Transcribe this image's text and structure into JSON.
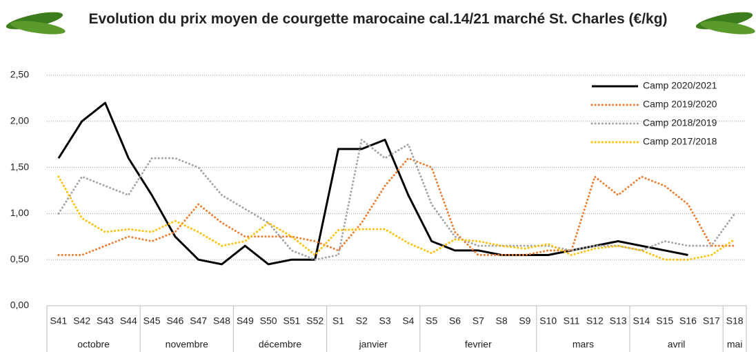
{
  "chart_data": {
    "type": "line",
    "title": "Evolution du prix moyen de courgette marocaine cal.14/21 marché St. Charles (€/kg)",
    "categories": [
      "S41",
      "S42",
      "S43",
      "S44",
      "S45",
      "S46",
      "S47",
      "S48",
      "S49",
      "S50",
      "S51",
      "S52",
      "S1",
      "S2",
      "S3",
      "S4",
      "S5",
      "S6",
      "S7",
      "S8",
      "S9",
      "S10",
      "S11",
      "S12",
      "S13",
      "S14",
      "S15",
      "S16",
      "S17",
      "S18"
    ],
    "groups": [
      {
        "label": "octobre",
        "span": 4
      },
      {
        "label": "novembre",
        "span": 4
      },
      {
        "label": "décembre",
        "span": 4
      },
      {
        "label": "janvier",
        "span": 4
      },
      {
        "label": "fevrier",
        "span": 5
      },
      {
        "label": "mars",
        "span": 4
      },
      {
        "label": "avril",
        "span": 4
      },
      {
        "label": "mai",
        "span": 1
      }
    ],
    "ylim": [
      0,
      2.5
    ],
    "yticks": [
      {
        "value": 0,
        "label": "0,00"
      },
      {
        "value": 0.5,
        "label": "0,50"
      },
      {
        "value": 1,
        "label": "1,00"
      },
      {
        "value": 1.5,
        "label": "1,50"
      },
      {
        "value": 2,
        "label": "2,00"
      },
      {
        "value": 2.5,
        "label": "2,50"
      }
    ],
    "grid": true,
    "legend": "top-right",
    "series": [
      {
        "name": "Camp 2020/2021",
        "color": "#000000",
        "label_color": "#000000",
        "dashed": false,
        "values": [
          1.6,
          2.0,
          2.2,
          1.6,
          1.2,
          0.75,
          0.5,
          0.45,
          0.65,
          0.45,
          0.5,
          0.5,
          1.7,
          1.7,
          1.8,
          1.2,
          0.7,
          0.6,
          0.6,
          0.55,
          0.55,
          0.55,
          0.6,
          0.65,
          0.7,
          0.65,
          0.6,
          0.55,
          null,
          null
        ]
      },
      {
        "name": "Camp 2019/2020",
        "color": "#ed7d31",
        "label_color": "#c00000",
        "dashed": true,
        "values": [
          0.55,
          0.55,
          0.65,
          0.75,
          0.7,
          0.8,
          1.1,
          0.9,
          0.75,
          0.75,
          0.75,
          0.7,
          0.6,
          0.9,
          1.3,
          1.6,
          1.5,
          0.8,
          0.55,
          0.55,
          0.55,
          0.6,
          0.6,
          1.4,
          1.2,
          1.4,
          1.3,
          1.1,
          0.65,
          0.65
        ]
      },
      {
        "name": "Camp 2018/2019",
        "color": "#a5a5a5",
        "label_color": "#00b050",
        "dashed": true,
        "values": [
          1.0,
          1.4,
          1.3,
          1.2,
          1.6,
          1.6,
          1.5,
          1.2,
          1.05,
          0.9,
          0.6,
          0.5,
          0.55,
          1.8,
          1.6,
          1.75,
          1.1,
          0.75,
          0.65,
          0.65,
          0.65,
          0.65,
          0.6,
          0.65,
          0.65,
          0.6,
          0.7,
          0.65,
          0.65,
          1.0
        ]
      },
      {
        "name": "Camp 2017/2018",
        "color": "#ffc000",
        "label_color": "#000000",
        "dashed": true,
        "values": [
          1.4,
          0.95,
          0.8,
          0.83,
          0.8,
          0.92,
          0.8,
          0.65,
          0.7,
          0.9,
          0.75,
          0.55,
          0.82,
          0.83,
          0.83,
          0.68,
          0.57,
          0.72,
          0.7,
          0.65,
          0.62,
          0.67,
          0.55,
          0.62,
          0.65,
          0.6,
          0.5,
          0.5,
          0.55,
          0.72
        ]
      }
    ]
  }
}
